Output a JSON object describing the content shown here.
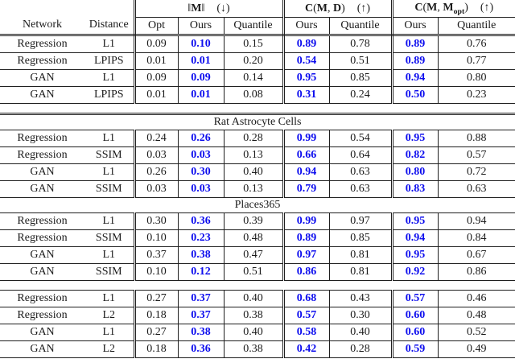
{
  "colors": {
    "highlight_blue": "#0d0dee",
    "text": "#1a1a1a",
    "rule": "#1f1f1f",
    "background": "#ffffff"
  },
  "table": {
    "highlight_columns": [
      1,
      3,
      5
    ],
    "header": {
      "network": "Network",
      "distance": "Distance",
      "groups": [
        {
          "segments": [
            {
              "t": "‖"
            },
            {
              "t": "M",
              "bold": true
            },
            {
              "t": "‖"
            }
          ],
          "arrow": "(↓)",
          "cols": [
            "Opt",
            "Ours",
            "Quantile"
          ]
        },
        {
          "segments": [
            {
              "t": "C",
              "bold": true
            },
            {
              "t": "("
            },
            {
              "t": "M",
              "bold": true
            },
            {
              "t": ", "
            },
            {
              "t": "D",
              "bold": true
            },
            {
              "t": ")"
            }
          ],
          "arrow": "(↑)",
          "cols": [
            "Ours",
            "Quantile"
          ]
        },
        {
          "segments": [
            {
              "t": "C",
              "bold": true
            },
            {
              "t": "("
            },
            {
              "t": "M",
              "bold": true
            },
            {
              "t": ", "
            },
            {
              "t": "M",
              "bold": true
            },
            {
              "t": "opt",
              "bold": true,
              "sub": true
            },
            {
              "t": ")"
            }
          ],
          "arrow": "(↑)",
          "cols": [
            "Ours",
            "Quantile"
          ]
        }
      ]
    },
    "sections": [
      {
        "title": "",
        "gap_before": false,
        "rows": [
          {
            "network": "Regression",
            "distance": "L1",
            "values": [
              "0.09",
              "0.10",
              "0.15",
              "0.89",
              "0.78",
              "0.89",
              "0.76"
            ]
          },
          {
            "network": "Regression",
            "distance": "LPIPS",
            "values": [
              "0.01",
              "0.01",
              "0.20",
              "0.54",
              "0.51",
              "0.89",
              "0.77"
            ]
          },
          {
            "network": "GAN",
            "distance": "L1",
            "values": [
              "0.09",
              "0.09",
              "0.14",
              "0.95",
              "0.85",
              "0.94",
              "0.80"
            ]
          },
          {
            "network": "GAN",
            "distance": "LPIPS",
            "values": [
              "0.01",
              "0.01",
              "0.08",
              "0.31",
              "0.24",
              "0.50",
              "0.23"
            ]
          }
        ]
      },
      {
        "title": "Rat Astrocyte Cells",
        "gap_before": true,
        "rows": [
          {
            "network": "Regression",
            "distance": "L1",
            "values": [
              "0.24",
              "0.26",
              "0.28",
              "0.99",
              "0.54",
              "0.95",
              "0.88"
            ]
          },
          {
            "network": "Regression",
            "distance": "SSIM",
            "values": [
              "0.03",
              "0.03",
              "0.13",
              "0.66",
              "0.64",
              "0.82",
              "0.57"
            ]
          },
          {
            "network": "GAN",
            "distance": "L1",
            "values": [
              "0.26",
              "0.30",
              "0.40",
              "0.94",
              "0.63",
              "0.80",
              "0.72"
            ]
          },
          {
            "network": "GAN",
            "distance": "SSIM",
            "values": [
              "0.03",
              "0.03",
              "0.13",
              "0.79",
              "0.63",
              "0.83",
              "0.63"
            ]
          }
        ]
      },
      {
        "title": "Places365",
        "gap_before": false,
        "rows": [
          {
            "network": "Regression",
            "distance": "L1",
            "values": [
              "0.30",
              "0.36",
              "0.39",
              "0.99",
              "0.97",
              "0.95",
              "0.94"
            ]
          },
          {
            "network": "Regression",
            "distance": "SSIM",
            "values": [
              "0.10",
              "0.23",
              "0.48",
              "0.89",
              "0.85",
              "0.94",
              "0.84"
            ]
          },
          {
            "network": "GAN",
            "distance": "L1",
            "values": [
              "0.37",
              "0.38",
              "0.47",
              "0.97",
              "0.81",
              "0.95",
              "0.67"
            ]
          },
          {
            "network": "GAN",
            "distance": "SSIM",
            "values": [
              "0.10",
              "0.12",
              "0.51",
              "0.86",
              "0.81",
              "0.92",
              "0.86"
            ]
          }
        ]
      },
      {
        "title": "",
        "gap_before": true,
        "rows": [
          {
            "network": "Regression",
            "distance": "L1",
            "values": [
              "0.27",
              "0.37",
              "0.40",
              "0.68",
              "0.43",
              "0.57",
              "0.46"
            ]
          },
          {
            "network": "Regression",
            "distance": "L2",
            "values": [
              "0.18",
              "0.37",
              "0.38",
              "0.57",
              "0.30",
              "0.60",
              "0.48"
            ]
          },
          {
            "network": "GAN",
            "distance": "L1",
            "values": [
              "0.27",
              "0.38",
              "0.40",
              "0.58",
              "0.40",
              "0.60",
              "0.52"
            ]
          },
          {
            "network": "GAN",
            "distance": "L2",
            "values": [
              "0.18",
              "0.36",
              "0.38",
              "0.42",
              "0.28",
              "0.59",
              "0.49"
            ]
          }
        ]
      }
    ]
  }
}
